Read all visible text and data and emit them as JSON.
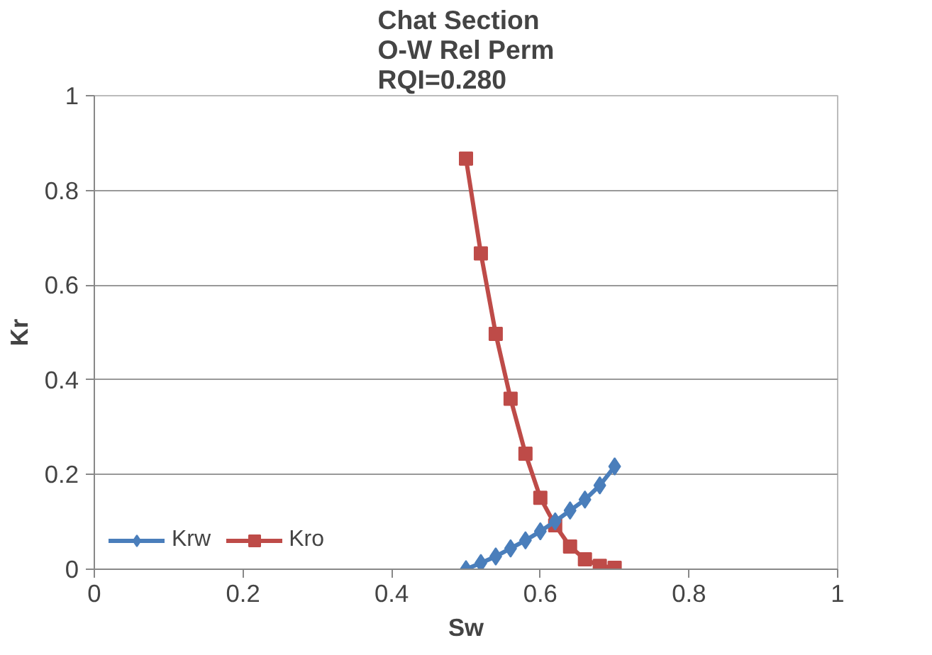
{
  "chart_data": {
    "type": "line",
    "title": "Chat Section\nO-W Rel Perm\nRQI=0.280",
    "xlabel": "Sw",
    "ylabel": "Kr",
    "x": [
      0.5,
      0.52,
      0.54,
      0.56,
      0.58,
      0.6,
      0.62,
      0.64,
      0.66,
      0.68,
      0.7
    ],
    "series": [
      {
        "name": "Krw",
        "color": "#4a7ebb",
        "marker": "diamond",
        "values": [
          0,
          0.013,
          0.027,
          0.044,
          0.061,
          0.08,
          0.101,
          0.124,
          0.147,
          0.177,
          0.217
        ]
      },
      {
        "name": "Kro",
        "color": "#be4b48",
        "marker": "square",
        "values": [
          0.867,
          0.667,
          0.497,
          0.36,
          0.244,
          0.151,
          0.093,
          0.048,
          0.021,
          0.007,
          0.003
        ]
      }
    ],
    "xlim": [
      0,
      1
    ],
    "ylim": [
      0,
      1
    ],
    "xticks": [
      0,
      0.2,
      0.4,
      0.6,
      0.8,
      1
    ],
    "yticks": [
      0,
      0.2,
      0.4,
      0.6,
      0.8,
      1
    ],
    "grid": "y",
    "legend": "bottom left",
    "line_style": "solid"
  }
}
